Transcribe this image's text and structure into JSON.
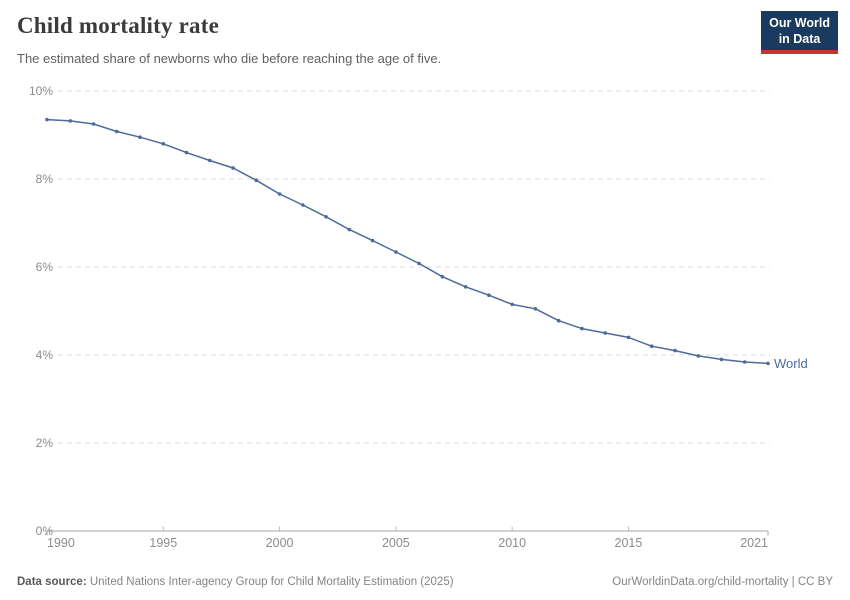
{
  "header": {
    "title": "Child mortality rate",
    "subtitle": "The estimated share of newborns who die before reaching the age of five.",
    "logo": {
      "line1": "Our World",
      "line2": "in Data"
    }
  },
  "footer": {
    "datasource_label": "Data source:",
    "datasource_text": " United Nations Inter-agency Group for Child Mortality Estimation (2025)",
    "credit": "OurWorldinData.org/child-mortality | CC BY"
  },
  "colors": {
    "line": "#4c6a9c",
    "entity_label": "#4c6a9c",
    "grid": "#dcdcdc",
    "axis": "#a6a6a6",
    "minor_tick": "#bdbdbd",
    "tick_label": "#8c8c8c",
    "logo_bg": "#1b3a5f",
    "logo_stripe": "#c5372c"
  },
  "chart_data": {
    "type": "line",
    "title": "Child mortality rate",
    "subtitle": "The estimated share of newborns who die before reaching the age of five.",
    "x": [
      1990,
      1991,
      1992,
      1993,
      1994,
      1995,
      1996,
      1997,
      1998,
      1999,
      2000,
      2001,
      2002,
      2003,
      2004,
      2005,
      2006,
      2007,
      2008,
      2009,
      2010,
      2011,
      2012,
      2013,
      2014,
      2015,
      2016,
      2017,
      2018,
      2019,
      2020,
      2021
    ],
    "series": [
      {
        "name": "World",
        "values": [
          9.35,
          9.32,
          9.25,
          9.08,
          8.95,
          8.8,
          8.6,
          8.42,
          8.25,
          7.97,
          7.66,
          7.41,
          7.14,
          6.85,
          6.6,
          6.34,
          6.08,
          5.78,
          5.55,
          5.36,
          5.15,
          5.05,
          4.78,
          4.6,
          4.5,
          4.4,
          4.2,
          4.1,
          3.98,
          3.9,
          3.84,
          3.81
        ]
      }
    ],
    "ylim": [
      0,
      10
    ],
    "yticks": [
      0,
      2,
      4,
      6,
      8,
      10
    ],
    "ytick_format": "percent",
    "xticks": [
      1990,
      1995,
      2000,
      2005,
      2010,
      2015,
      2021
    ],
    "grid": "dashed-horizontal",
    "legend": "entity-label-at-line-end",
    "unit": "%"
  }
}
